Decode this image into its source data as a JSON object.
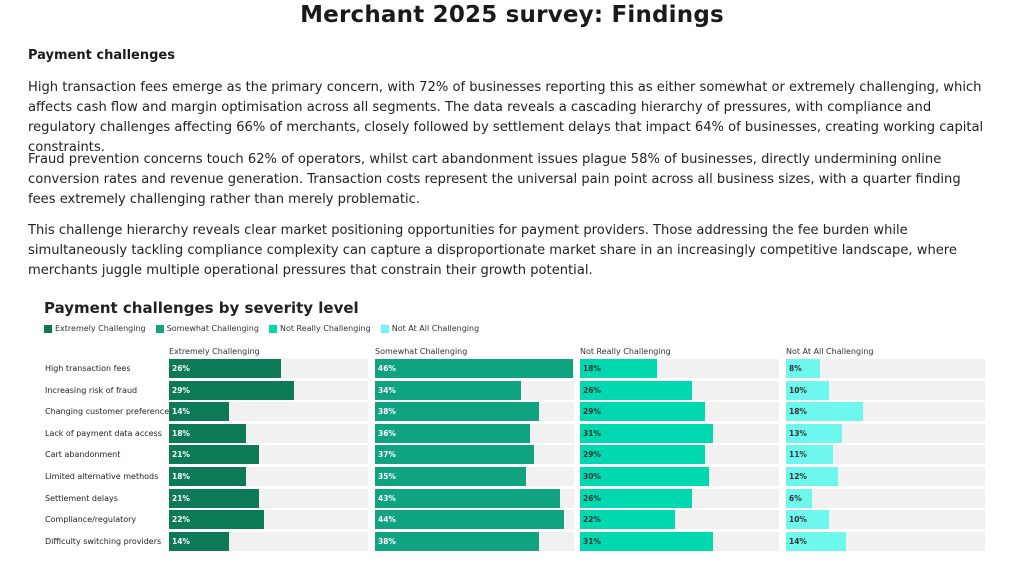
{
  "page": {
    "title": "Merchant 2025 survey: Findings",
    "section_heading": "Payment challenges",
    "paragraphs": [
      "High transaction fees emerge as the primary concern, with 72% of businesses reporting this as either somewhat or extremely challenging, which affects cash flow and margin optimisation across all segments. The data reveals a cascading hierarchy of pressures, with compliance and regulatory challenges affecting 66% of merchants, closely followed by settlement delays that impact 64% of businesses, creating working capital constraints.",
      "Fraud prevention concerns touch 62% of operators, whilst cart abandonment issues plague 58% of businesses, directly undermining online conversion rates and revenue generation. Transaction costs represent the universal pain point across all business sizes, with a quarter finding fees extremely challenging rather than merely problematic.",
      "This challenge hierarchy reveals clear market positioning opportunities for payment providers. Those addressing the fee burden while simultaneously tackling compliance complexity can capture a disproportionate market share in an increasingly competitive landscape, where merchants juggle multiple operational pressures that constrain their growth potential."
    ]
  },
  "chart_data": {
    "type": "bar",
    "title": "Payment challenges by severity level",
    "categories": [
      "High transaction fees",
      "Increasing risk of fraud",
      "Changing customer preferences",
      "Lack of payment data access",
      "Cart abandonment",
      "Limited alternative methods",
      "Settlement delays",
      "Compliance/regulatory",
      "Difficulty switching providers"
    ],
    "series": [
      {
        "name": "Extremely Challenging",
        "color": "#0d7a57",
        "values": [
          26,
          29,
          14,
          18,
          21,
          18,
          21,
          22,
          14
        ]
      },
      {
        "name": "Somewhat Challenging",
        "color": "#10a37f",
        "values": [
          46,
          34,
          38,
          36,
          37,
          35,
          43,
          44,
          38
        ]
      },
      {
        "name": "Not Really Challenging",
        "color": "#00d9b0",
        "values": [
          18,
          26,
          29,
          31,
          29,
          30,
          26,
          22,
          31
        ]
      },
      {
        "name": "Not At All Challenging",
        "color": "#6ef7ec",
        "values": [
          8,
          10,
          18,
          13,
          11,
          12,
          6,
          10,
          14
        ]
      }
    ],
    "value_suffix": "%",
    "xlim": [
      0,
      46
    ],
    "legend_position": "top-left",
    "grid": false
  }
}
